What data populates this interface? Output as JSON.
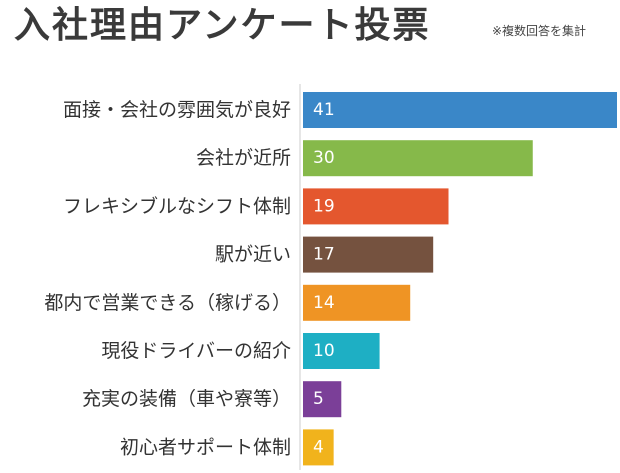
{
  "header": {
    "title": "入社理由アンケート投票",
    "note": "※複数回答を集計"
  },
  "chart_data": {
    "type": "bar",
    "orientation": "horizontal",
    "title": "入社理由アンケート投票",
    "subtitle": "※複数回答を集計",
    "xlabel": "",
    "ylabel": "",
    "categories": [
      "面接・会社の雰囲気が良好",
      "会社が近所",
      "フレキシブルなシフト体制",
      "駅が近い",
      "都内で営業できる（稼げる）",
      "現役ドライバーの紹介",
      "充実の装備（車や寮等）",
      "初心者サポート体制"
    ],
    "values": [
      41,
      30,
      19,
      17,
      14,
      10,
      5,
      4
    ],
    "colors": [
      "#3a87c8",
      "#86b94a",
      "#e4572e",
      "#75523f",
      "#ef9424",
      "#1eafc4",
      "#7b3f98",
      "#f1b31c"
    ],
    "value_labels_color": "#ffffff",
    "xlim": [
      0,
      41
    ],
    "grid": false,
    "legend": "none"
  }
}
